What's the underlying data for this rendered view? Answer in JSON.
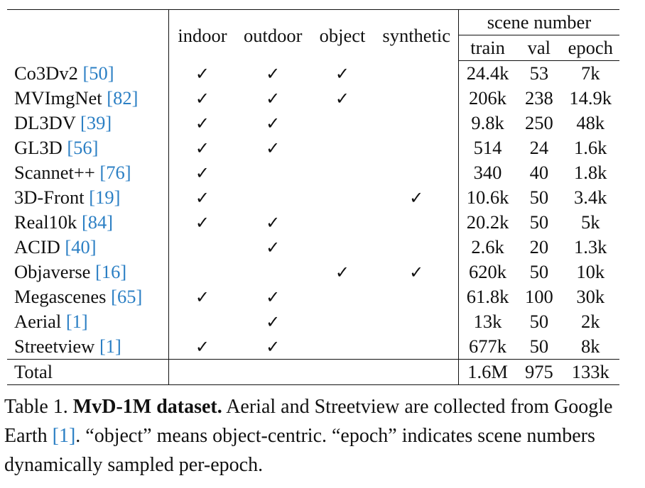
{
  "headers": {
    "indoor": "indoor",
    "outdoor": "outdoor",
    "object": "object",
    "synthetic": "synthetic",
    "scene_number": "scene number",
    "train": "train",
    "val": "val",
    "epoch": "epoch"
  },
  "check_glyph": "✓",
  "rows": [
    {
      "name": "Co3Dv2 ",
      "ref": "[50]",
      "indoor": true,
      "outdoor": true,
      "object": true,
      "synthetic": false,
      "train": "24.4k",
      "val": "53",
      "epoch": "7k"
    },
    {
      "name": "MVImgNet ",
      "ref": "[82]",
      "indoor": true,
      "outdoor": true,
      "object": true,
      "synthetic": false,
      "train": "206k",
      "val": "238",
      "epoch": "14.9k"
    },
    {
      "name": "DL3DV ",
      "ref": "[39]",
      "indoor": true,
      "outdoor": true,
      "object": false,
      "synthetic": false,
      "train": "9.8k",
      "val": "250",
      "epoch": "48k"
    },
    {
      "name": "GL3D ",
      "ref": "[56]",
      "indoor": true,
      "outdoor": true,
      "object": false,
      "synthetic": false,
      "train": "514",
      "val": "24",
      "epoch": "1.6k"
    },
    {
      "name": "Scannet++ ",
      "ref": "[76]",
      "indoor": true,
      "outdoor": false,
      "object": false,
      "synthetic": false,
      "train": "340",
      "val": "40",
      "epoch": "1.8k"
    },
    {
      "name": "3D-Front ",
      "ref": "[19]",
      "indoor": true,
      "outdoor": false,
      "object": false,
      "synthetic": true,
      "train": "10.6k",
      "val": "50",
      "epoch": "3.4k"
    },
    {
      "name": "Real10k ",
      "ref": "[84]",
      "indoor": true,
      "outdoor": true,
      "object": false,
      "synthetic": false,
      "train": "20.2k",
      "val": "50",
      "epoch": "5k"
    },
    {
      "name": "ACID ",
      "ref": "[40]",
      "indoor": false,
      "outdoor": true,
      "object": false,
      "synthetic": false,
      "train": "2.6k",
      "val": "20",
      "epoch": "1.3k"
    },
    {
      "name": "Objaverse ",
      "ref": "[16]",
      "indoor": false,
      "outdoor": false,
      "object": true,
      "synthetic": true,
      "train": "620k",
      "val": "50",
      "epoch": "10k"
    },
    {
      "name": "Megascenes ",
      "ref": "[65]",
      "indoor": true,
      "outdoor": true,
      "object": false,
      "synthetic": false,
      "train": "61.8k",
      "val": "100",
      "epoch": "30k"
    },
    {
      "name": "Aerial ",
      "ref": "[1]",
      "indoor": false,
      "outdoor": true,
      "object": false,
      "synthetic": false,
      "train": "13k",
      "val": "50",
      "epoch": "2k"
    },
    {
      "name": "Streetview ",
      "ref": "[1]",
      "indoor": true,
      "outdoor": true,
      "object": false,
      "synthetic": false,
      "train": "677k",
      "val": "50",
      "epoch": "8k"
    }
  ],
  "total": {
    "name": "Total",
    "train": "1.6M",
    "val": "975",
    "epoch": "133k"
  },
  "caption": {
    "label": "Table 1. ",
    "title": "MvD-1M dataset.",
    "text1": " Aerial and Streetview are collected from Google Earth ",
    "ref": "[1]",
    "text2": ". “object” means object-centric. “epoch” indicates scene numbers dynamically sampled per-epoch."
  },
  "colors": {
    "reference_link": "#2b7fc4",
    "text": "#111111"
  }
}
